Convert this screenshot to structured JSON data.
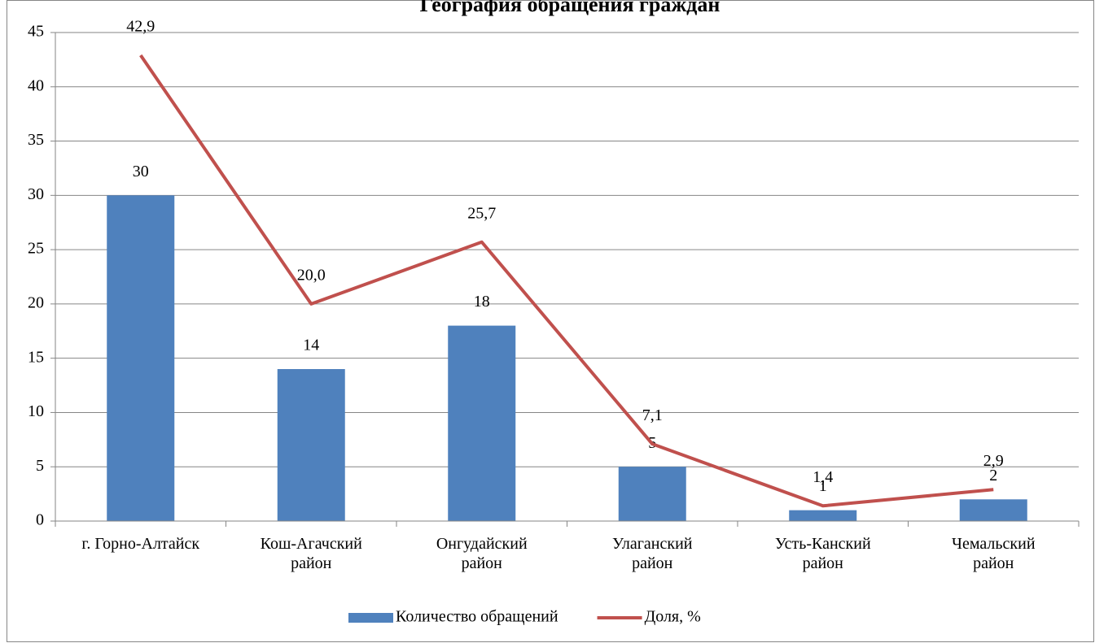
{
  "chart_data": {
    "type": "bar",
    "title": "География обращения граждан",
    "categories": [
      "г. Горно-Алтайск",
      "Кош-Агачский\nрайон",
      "Онгудайский\nрайон",
      "Улаганский\nрайон",
      "Усть-Канский\nрайон",
      "Чемальский\nрайон"
    ],
    "series": [
      {
        "name": "Количество обращений",
        "type": "bar",
        "color": "#4f81bd",
        "values": [
          30,
          14,
          18,
          5,
          1,
          2
        ]
      },
      {
        "name": "Доля, %",
        "type": "line",
        "color": "#c0504d",
        "values": [
          42.9,
          20.0,
          25.7,
          7.1,
          1.4,
          2.9
        ],
        "value_labels": [
          "42,9",
          "20,0",
          "25,7",
          "7,1",
          "1,4",
          "2,9"
        ]
      }
    ],
    "ylim": [
      0,
      45
    ],
    "yticks": [
      0,
      5,
      10,
      15,
      20,
      25,
      30,
      35,
      40,
      45
    ],
    "grid": true,
    "legend": "bottom"
  }
}
